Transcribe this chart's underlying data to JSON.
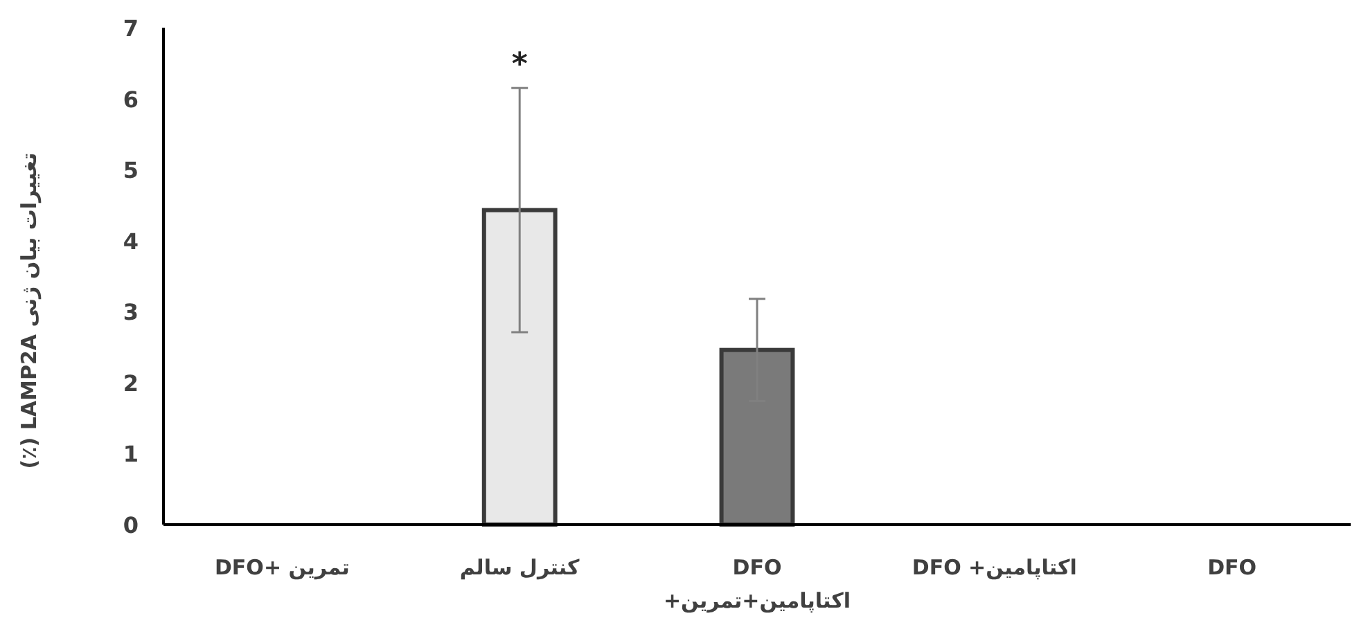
{
  "chart_data": {
    "type": "bar",
    "categories": [
      "تمرین +DFO",
      "کنترل سالم",
      "DFO\nاکتاپامین+تمرین+",
      "اکتاپامین+ DFO",
      "DFO"
    ],
    "values": [
      0,
      4.43,
      2.46,
      0,
      0
    ],
    "errors": [
      null,
      1.72,
      0.72,
      null,
      null
    ],
    "colors": [
      "#e0e0e0",
      "#e8e8e8",
      "#7a7a7a",
      "#e0e0e0",
      "#e0e0e0"
    ],
    "ylabel": "تغییرات بیان ژنی  LAMP2A  (٪)",
    "ylim": [
      0,
      7
    ],
    "yticks": [
      0,
      1,
      2,
      3,
      4,
      5,
      6,
      7
    ],
    "annotations": [
      "*"
    ],
    "grid": false
  }
}
